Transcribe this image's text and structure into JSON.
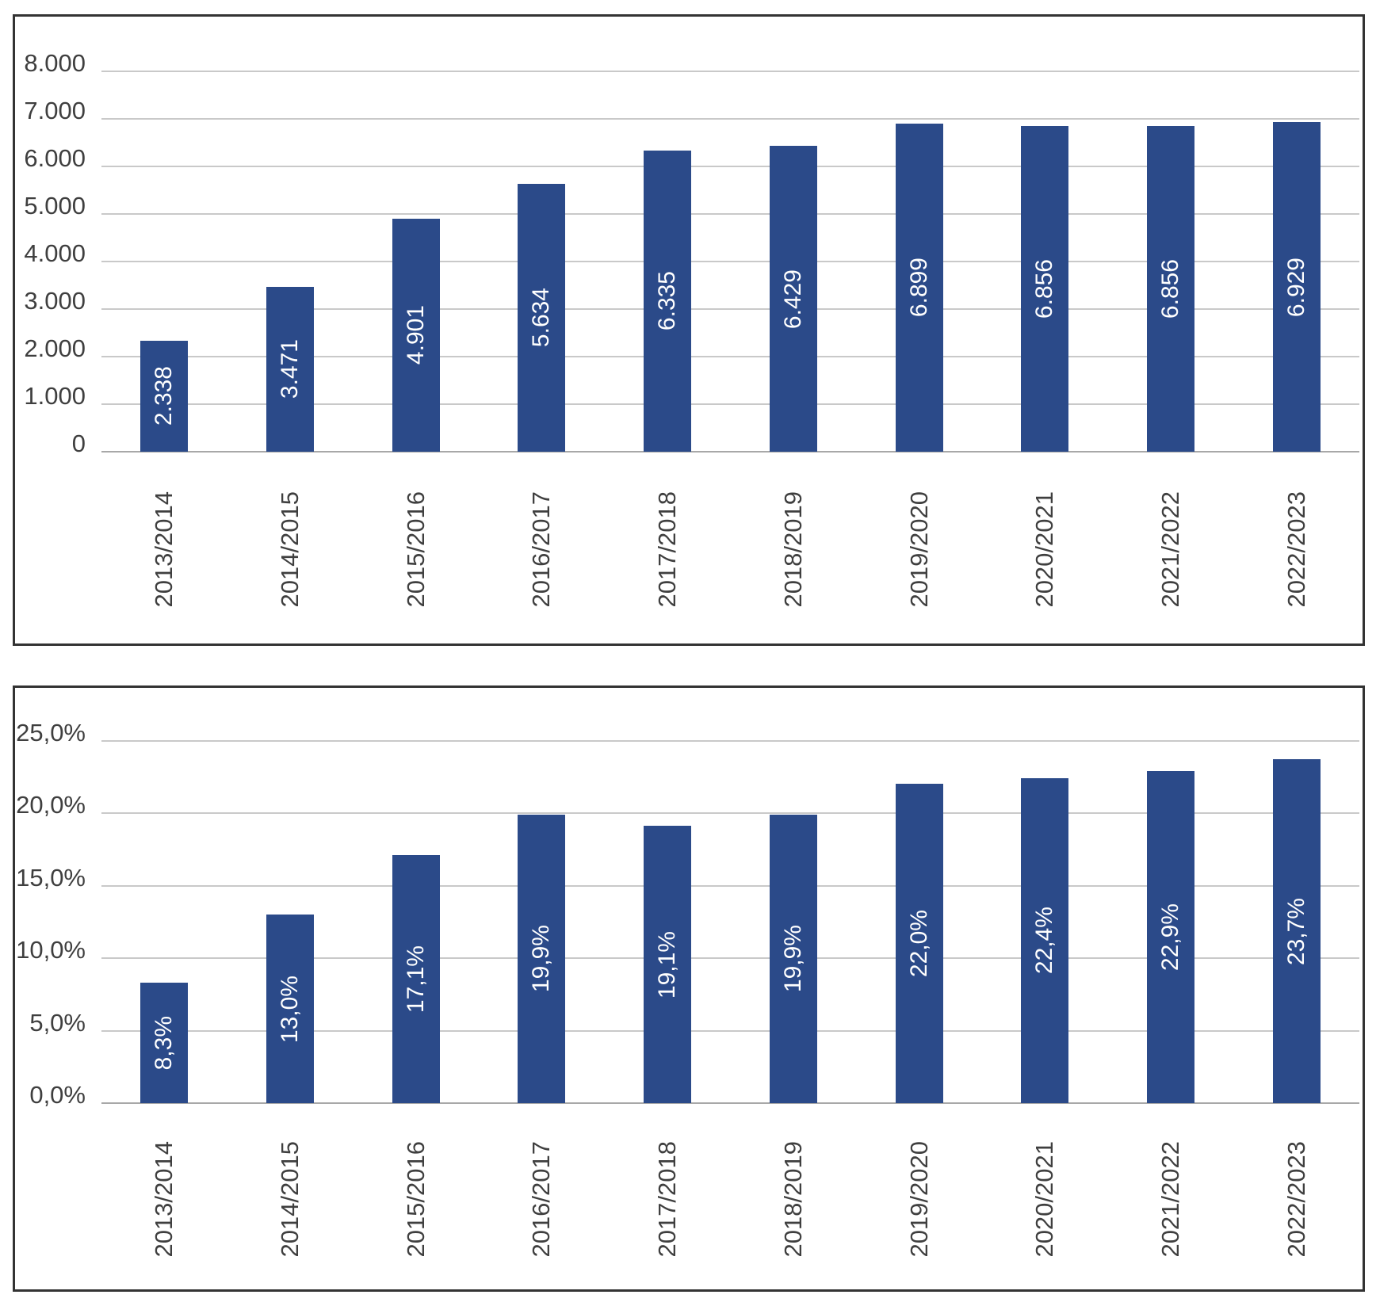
{
  "colors": {
    "bar_fill": "#2B4A89",
    "bar_label_text": "#FFFFFF",
    "gridline": "#C9C9C9",
    "axis_line": "#A8A8A8",
    "tick_text": "#3F3F3F",
    "frame_border": "#333333",
    "background": "#FFFFFF"
  },
  "chart_data": [
    {
      "type": "bar",
      "title": "",
      "xlabel": "",
      "ylabel": "",
      "legend": "none",
      "grid": true,
      "categories": [
        "2013/2014",
        "2014/2015",
        "2015/2016",
        "2016/2017",
        "2017/2018",
        "2018/2019",
        "2019/2020",
        "2020/2021",
        "2021/2022",
        "2022/2023"
      ],
      "values": [
        2338,
        3471,
        4901,
        5634,
        6335,
        6429,
        6899,
        6856,
        6856,
        6929
      ],
      "value_labels": [
        "2.338",
        "3.471",
        "4.901",
        "5.634",
        "6.335",
        "6.429",
        "6.899",
        "6.856",
        "6.856",
        "6.929"
      ],
      "ylim": [
        0,
        8000
      ],
      "y_tick_values": [
        8000,
        7000,
        6000,
        5000,
        4000,
        3000,
        2000,
        1000,
        0
      ],
      "y_tick_labels": [
        "8.000",
        "7.000",
        "6.000",
        "5.000",
        "4.000",
        "3.000",
        "2.000",
        "1.000",
        "0"
      ]
    },
    {
      "type": "bar",
      "title": "",
      "xlabel": "",
      "ylabel": "",
      "legend": "none",
      "grid": true,
      "categories": [
        "2013/2014",
        "2014/2015",
        "2015/2016",
        "2016/2017",
        "2017/2018",
        "2018/2019",
        "2019/2020",
        "2020/2021",
        "2021/2022",
        "2022/2023"
      ],
      "values": [
        8.3,
        13.0,
        17.1,
        19.9,
        19.1,
        19.9,
        22.0,
        22.4,
        22.9,
        23.7
      ],
      "value_labels": [
        "8,3%",
        "13,0%",
        "17,1%",
        "19,9%",
        "19,1%",
        "19,9%",
        "22,0%",
        "22,4%",
        "22,9%",
        "23,7%"
      ],
      "ylim": [
        0,
        25
      ],
      "y_tick_values": [
        25,
        20,
        15,
        10,
        5,
        0
      ],
      "y_tick_labels": [
        "25,0%",
        "20,0%",
        "15,0%",
        "10,0%",
        "5,0%",
        "0,0%"
      ]
    }
  ]
}
